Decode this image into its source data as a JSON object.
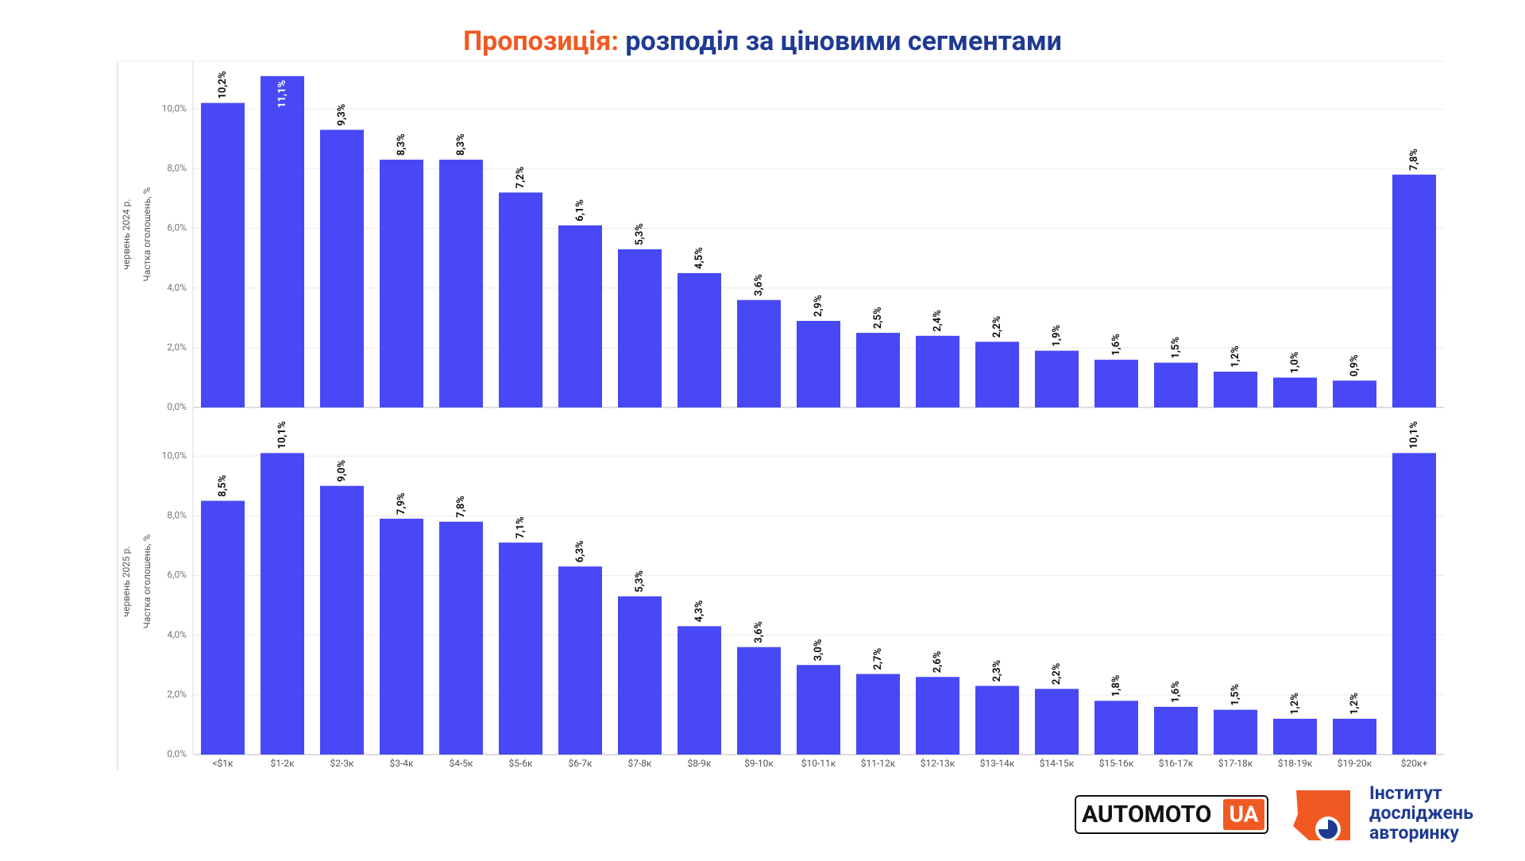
{
  "title": {
    "highlight": "Пропозиція:",
    "text": "розподіл за ціновими сегментами"
  },
  "logos": {
    "automoto": "AUTOMOTO",
    "automoto_suffix": "UA",
    "institute": [
      "Інститут",
      "досліджень",
      "авторинку"
    ]
  },
  "chart_data": [
    {
      "type": "bar",
      "ylabel": [
        "червень 2024 р.",
        "Частка оголошень, %"
      ],
      "color": "#4848f7",
      "grid": true,
      "categories": [
        "<$1к",
        "$1-2к",
        "$2-3к",
        "$3-4к",
        "$4-5к",
        "$5-6к",
        "$6-7к",
        "$7-8к",
        "$8-9к",
        "$9-10к",
        "$10-11к",
        "$11-12к",
        "$12-13к",
        "$13-14к",
        "$14-15к",
        "$15-16к",
        "$16-17к",
        "$17-18к",
        "$18-19к",
        "$19-20к",
        "$20к+"
      ],
      "values": [
        10.2,
        11.1,
        9.3,
        8.3,
        8.3,
        7.2,
        6.1,
        5.3,
        4.5,
        3.6,
        2.9,
        2.5,
        2.4,
        2.2,
        1.9,
        1.6,
        1.5,
        1.2,
        1.0,
        0.9,
        7.8
      ],
      "value_labels": [
        "10,2%",
        "11,1%",
        "9,3%",
        "8,3%",
        "8,3%",
        "7,2%",
        "6,1%",
        "5,3%",
        "4,5%",
        "3,6%",
        "2,9%",
        "2,5%",
        "2,4%",
        "2,2%",
        "1,9%",
        "1,6%",
        "1,5%",
        "1,2%",
        "1,0%",
        "0,9%",
        "7,8%"
      ],
      "ylim": [
        0,
        11.6
      ],
      "yticks": [
        {
          "value": 0,
          "label": "0,0%"
        },
        {
          "value": 2,
          "label": "2,0%"
        },
        {
          "value": 4,
          "label": "4,0%"
        },
        {
          "value": 6,
          "label": "6,0%"
        },
        {
          "value": 8,
          "label": "8,0%"
        },
        {
          "value": 10,
          "label": "10,0%"
        }
      ]
    },
    {
      "type": "bar",
      "ylabel": [
        "червень 2025 р.",
        "Частка оголошень, %"
      ],
      "color": "#4848f7",
      "grid": true,
      "categories": [
        "<$1к",
        "$1-2к",
        "$2-3к",
        "$3-4к",
        "$4-5к",
        "$5-6к",
        "$6-7к",
        "$7-8к",
        "$8-9к",
        "$9-10к",
        "$10-11к",
        "$11-12к",
        "$12-13к",
        "$13-14к",
        "$14-15к",
        "$15-16к",
        "$16-17к",
        "$17-18к",
        "$18-19к",
        "$19-20к",
        "$20к+"
      ],
      "values": [
        8.5,
        10.1,
        9.0,
        7.9,
        7.8,
        7.1,
        6.3,
        5.3,
        4.3,
        3.6,
        3.0,
        2.7,
        2.6,
        2.3,
        2.2,
        1.8,
        1.6,
        1.5,
        1.2,
        1.2,
        10.1
      ],
      "value_labels": [
        "8,5%",
        "10,1%",
        "9,0%",
        "7,9%",
        "7,8%",
        "7,1%",
        "6,3%",
        "5,3%",
        "4,3%",
        "3,6%",
        "3,0%",
        "2,7%",
        "2,6%",
        "2,3%",
        "2,2%",
        "1,8%",
        "1,6%",
        "1,5%",
        "1,2%",
        "1,2%",
        "10,1%"
      ],
      "ylim": [
        0,
        11.6
      ],
      "yticks": [
        {
          "value": 0,
          "label": "0,0%"
        },
        {
          "value": 2,
          "label": "2,0%"
        },
        {
          "value": 4,
          "label": "4,0%"
        },
        {
          "value": 6,
          "label": "6,0%"
        },
        {
          "value": 8,
          "label": "8,0%"
        },
        {
          "value": 10,
          "label": "10,0%"
        }
      ]
    }
  ]
}
